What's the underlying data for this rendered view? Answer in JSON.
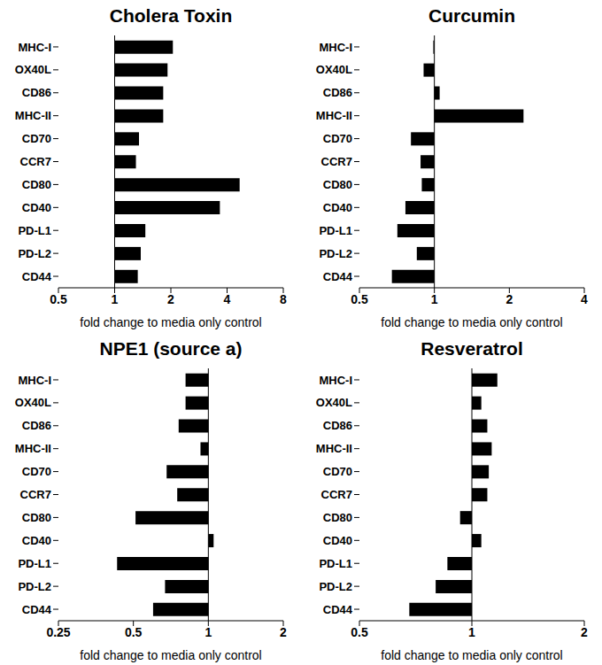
{
  "chart_data": [
    {
      "type": "bar",
      "title": "Cholera Toxin",
      "orientation": "horizontal",
      "log": "x",
      "color": "#000000",
      "categories": [
        "MHC-I",
        "OX40L",
        "CD86",
        "MHC-II",
        "CD70",
        "CCR7",
        "CD80",
        "CD40",
        "PD-L1",
        "PD-L2",
        "CD44"
      ],
      "values": [
        2.05,
        1.92,
        1.82,
        1.82,
        1.35,
        1.3,
        4.67,
        3.66,
        1.46,
        1.38,
        1.33
      ],
      "baseline": 1,
      "xlim": [
        0.5,
        8
      ],
      "xticks": [
        0.5,
        1,
        2,
        4,
        8
      ],
      "xlabel": "fold change to media only control"
    },
    {
      "type": "bar",
      "title": "Curcumin",
      "orientation": "horizontal",
      "log": "x",
      "color": "#000000",
      "categories": [
        "MHC-I",
        "OX40L",
        "CD86",
        "MHC-II",
        "CD70",
        "CCR7",
        "CD80",
        "CD40",
        "PD-L1",
        "PD-L2",
        "CD44"
      ],
      "values": [
        0.99,
        0.905,
        1.05,
        2.28,
        0.805,
        0.88,
        0.89,
        0.765,
        0.71,
        0.85,
        0.675
      ],
      "baseline": 1,
      "xlim": [
        0.5,
        4
      ],
      "xticks": [
        0.5,
        1,
        2,
        4
      ],
      "xlabel": "fold change to media only control"
    },
    {
      "type": "bar",
      "title": "NPE1 (source a)",
      "orientation": "horizontal",
      "log": "x",
      "color": "#000000",
      "categories": [
        "MHC-I",
        "OX40L",
        "CD86",
        "MHC-II",
        "CD70",
        "CCR7",
        "CD80",
        "CD40",
        "PD-L1",
        "PD-L2",
        "CD44"
      ],
      "values": [
        0.81,
        0.81,
        0.76,
        0.93,
        0.68,
        0.75,
        0.51,
        1.05,
        0.43,
        0.67,
        0.6
      ],
      "baseline": 1,
      "xlim": [
        0.25,
        2
      ],
      "xticks": [
        0.25,
        0.5,
        1,
        2
      ],
      "xlabel": "fold change to media only control"
    },
    {
      "type": "bar",
      "title": "Resveratrol",
      "orientation": "horizontal",
      "log": "x",
      "color": "#000000",
      "categories": [
        "MHC-I",
        "OX40L",
        "CD86",
        "MHC-II",
        "CD70",
        "CCR7",
        "CD80",
        "CD40",
        "PD-L1",
        "PD-L2",
        "CD44"
      ],
      "values": [
        1.17,
        1.06,
        1.1,
        1.13,
        1.11,
        1.1,
        0.93,
        1.06,
        0.86,
        0.8,
        0.68
      ],
      "baseline": 1,
      "xlim": [
        0.5,
        2
      ],
      "xticks": [
        0.5,
        1,
        2
      ],
      "xlabel": "fold change to media only control"
    }
  ]
}
